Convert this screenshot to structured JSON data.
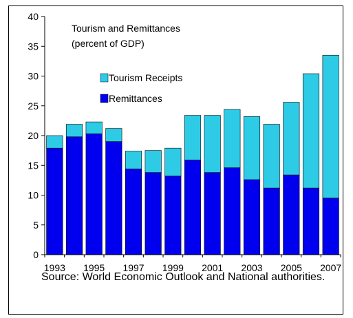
{
  "chart_data": {
    "type": "bar",
    "stacked": true,
    "title": "Tourism and Remittances",
    "subtitle": "(percent of GDP)",
    "x": [
      1993,
      1994,
      1995,
      1996,
      1997,
      1998,
      1999,
      2000,
      2001,
      2002,
      2003,
      2004,
      2005,
      2006,
      2007
    ],
    "x_tick_labels": [
      "1993",
      "1995",
      "1997",
      "1999",
      "2001",
      "2003",
      "2005",
      "2007"
    ],
    "y_ticks": [
      0,
      5,
      10,
      15,
      20,
      25,
      30,
      35,
      40
    ],
    "ylim": [
      0,
      40
    ],
    "series": [
      {
        "name": "Remittances",
        "color": "#0000ee",
        "values": [
          17.9,
          19.8,
          20.3,
          19.0,
          14.4,
          13.8,
          13.2,
          15.9,
          13.8,
          14.6,
          12.6,
          11.2,
          13.4,
          11.2,
          9.5
        ]
      },
      {
        "name": "Tourism Receipts",
        "color": "#2ecbe6",
        "values": [
          2.1,
          2.1,
          2.0,
          2.2,
          3.0,
          3.7,
          4.7,
          7.5,
          9.6,
          9.8,
          10.6,
          10.7,
          12.2,
          19.2,
          24.0
        ]
      }
    ],
    "legend": [
      "Tourism Receipts",
      "Remittances"
    ],
    "legend_position": "upper-left",
    "grid": false
  },
  "source_note": "Source: World Economic Outlook and National authorities."
}
